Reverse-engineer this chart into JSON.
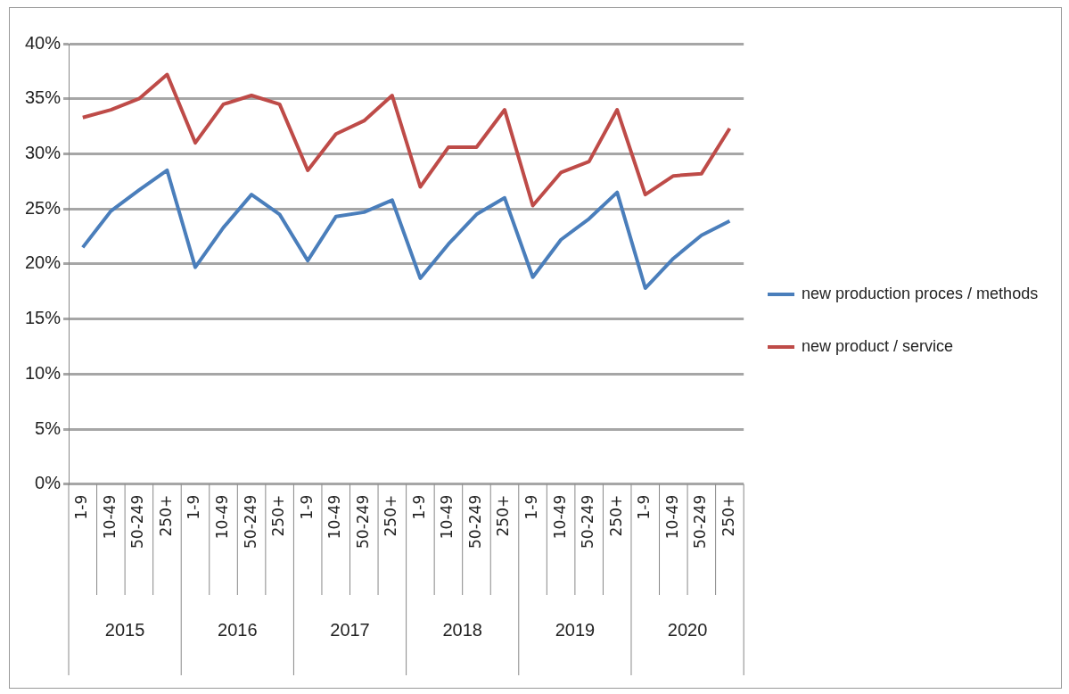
{
  "chart_data": {
    "type": "line",
    "categories": [
      "1-9",
      "10-49",
      "50-249",
      "250+",
      "1-9",
      "10-49",
      "50-249",
      "250+",
      "1-9",
      "10-49",
      "50-249",
      "250+",
      "1-9",
      "10-49",
      "50-249",
      "250+",
      "1-9",
      "10-49",
      "50-249",
      "250+",
      "1-9",
      "10-49",
      "50-249",
      "250+"
    ],
    "series": [
      {
        "name": "new production proces / methods",
        "color": "#4a7ebb",
        "values": [
          21.5,
          24.8,
          26.7,
          28.5,
          19.7,
          23.3,
          26.3,
          24.5,
          20.3,
          24.3,
          24.7,
          25.8,
          18.7,
          21.8,
          24.5,
          26,
          18.8,
          22.2,
          24.1,
          26.5,
          17.8,
          20.5,
          22.6,
          23.9
        ]
      },
      {
        "name": "new product / service",
        "color": "#be4b48",
        "values": [
          33.3,
          34,
          35,
          37.2,
          31,
          34.5,
          35.3,
          34.5,
          28.5,
          31.8,
          33,
          35.3,
          27,
          30.6,
          30.6,
          34,
          25.3,
          28.3,
          29.3,
          34,
          26.3,
          28,
          28.2,
          32.3
        ]
      }
    ],
    "annotations": [
      "2015",
      "2016",
      "2017",
      "2018",
      "2019",
      "2020"
    ],
    "ylim": [
      0,
      40
    ],
    "yticks": [
      {
        "value": 0,
        "label": "0%"
      },
      {
        "value": 5,
        "label": "5%"
      },
      {
        "value": 10,
        "label": "10%"
      },
      {
        "value": 15,
        "label": "15%"
      },
      {
        "value": 20,
        "label": "20%"
      },
      {
        "value": 25,
        "label": "25%"
      },
      {
        "value": 30,
        "label": "30%"
      },
      {
        "value": 35,
        "label": "35%"
      },
      {
        "value": 40,
        "label": "40%"
      }
    ],
    "grid": "y",
    "legend": "right",
    "marker": "none",
    "line_style": "solid"
  }
}
